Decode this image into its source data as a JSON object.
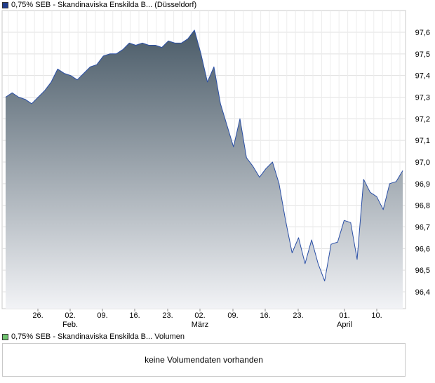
{
  "price_legend": {
    "label": "0,75% SEB - Skandinaviska Enskilda B... (Düsseldorf)",
    "color": "#1f3c8c"
  },
  "volume_legend": {
    "label": "0,75% SEB - Skandinaviska Enskilda B... Volumen",
    "color": "#6fc36f"
  },
  "volume_panel": {
    "message": "keine Volumendaten vorhanden"
  },
  "chart_data": {
    "type": "area",
    "x_ticks": [
      "26.",
      "02.",
      "09.",
      "16.",
      "23.",
      "02.",
      "09.",
      "16.",
      "23.",
      "01.",
      "10."
    ],
    "month_labels": [
      "Feb.",
      "März",
      "April"
    ],
    "y_ticks": [
      "97,6",
      "97,5",
      "97,4",
      "97,3",
      "97,2",
      "97,1",
      "97,0",
      "96,9",
      "96,8",
      "96,7",
      "96,6",
      "96,5",
      "96,4"
    ],
    "ylim": [
      96.35,
      97.67
    ],
    "y": [
      97.3,
      97.32,
      97.3,
      97.29,
      97.27,
      97.3,
      97.33,
      97.37,
      97.43,
      97.41,
      97.4,
      97.38,
      97.41,
      97.44,
      97.45,
      97.49,
      97.5,
      97.5,
      97.52,
      97.55,
      97.54,
      97.55,
      97.54,
      97.54,
      97.53,
      97.56,
      97.55,
      97.55,
      97.57,
      97.61,
      97.5,
      97.37,
      97.44,
      97.27,
      97.17,
      97.07,
      97.2,
      97.02,
      96.98,
      96.93,
      96.97,
      97.0,
      96.9,
      96.73,
      96.58,
      96.65,
      96.53,
      96.64,
      96.53,
      96.45,
      96.62,
      96.63,
      96.73,
      96.72,
      96.55,
      96.92,
      96.86,
      96.84,
      96.78,
      96.9,
      96.91,
      96.96
    ],
    "grid": true,
    "line_color": "#2a4fa6",
    "fill_top_color": "#4a5b68",
    "fill_bottom_color": "#f2f3f6"
  }
}
